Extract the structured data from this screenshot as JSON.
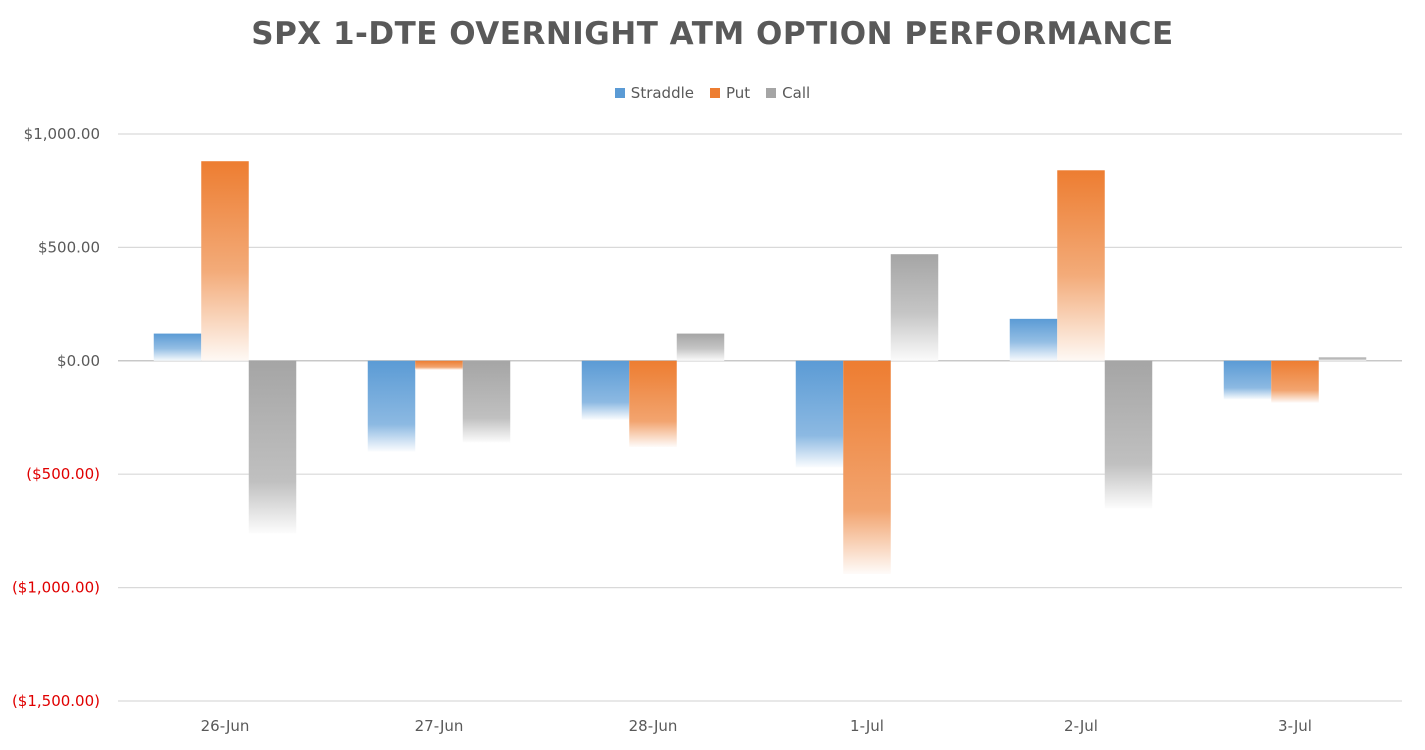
{
  "chart_data": {
    "type": "bar",
    "title": "SPX 1-DTE OVERNIGHT ATM OPTION PERFORMANCE",
    "xlabel": "",
    "ylabel": "",
    "categories": [
      "26-Jun",
      "27-Jun",
      "28-Jun",
      "1-Jul",
      "2-Jul",
      "3-Jul"
    ],
    "series": [
      {
        "name": "Straddle",
        "color": "#5B9BD5",
        "values": [
          120,
          -400,
          -260,
          -470,
          185,
          -170
        ]
      },
      {
        "name": "Put",
        "color": "#ED7D31",
        "values": [
          880,
          -40,
          -380,
          -940,
          840,
          -185
        ]
      },
      {
        "name": "Call",
        "color": "#A5A5A5",
        "values": [
          -760,
          -360,
          120,
          470,
          -650,
          15
        ]
      }
    ],
    "ylim": [
      -1500,
      1000
    ],
    "yticks": [
      1000,
      500,
      0,
      -500,
      -1000,
      -1500
    ],
    "ytick_labels": [
      "$1,000.00",
      "$500.00",
      "$0.00",
      "($500.00)",
      "($1,000.00)",
      "($1,500.00)"
    ],
    "negative_label_color": "#E00000",
    "positive_label_color": "#595959",
    "grid": true,
    "legend_position": "top-center"
  }
}
